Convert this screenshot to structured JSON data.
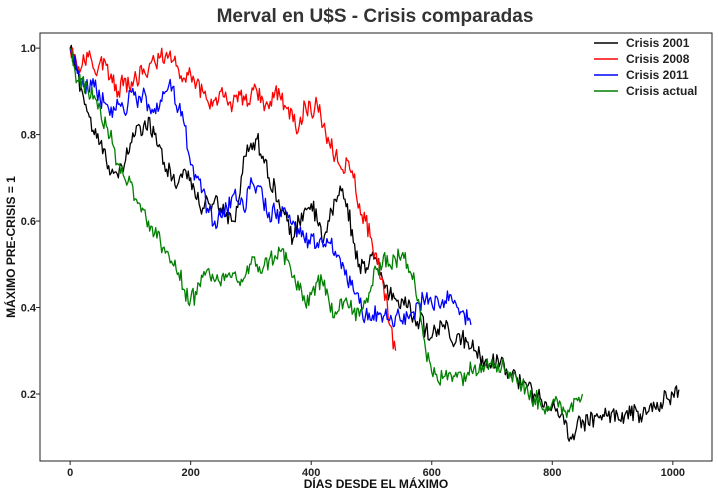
{
  "chart_data": {
    "type": "line",
    "title": "Merval en U$S - Crisis comparadas",
    "xlabel": "DÍAS DESDE EL MÁXIMO",
    "ylabel": "MÁXIMO PRE-CRISIS = 1",
    "xlim": [
      -50,
      1065
    ],
    "ylim": [
      0.045,
      1.035
    ],
    "xticks": [
      0,
      200,
      400,
      600,
      800,
      1000
    ],
    "yticks": [
      0.2,
      0.4,
      0.6,
      0.8,
      1.0
    ],
    "xtick_labels": [
      "0",
      "200",
      "400",
      "600",
      "800",
      "1000"
    ],
    "ytick_labels": [
      "0.2",
      "0.4",
      "0.6",
      "0.8",
      "1.0"
    ],
    "grid": false,
    "legend_position": "top-right",
    "series": [
      {
        "name": "Crisis 2001",
        "color": "#000000",
        "points": [
          [
            0,
            1.0
          ],
          [
            10,
            0.95
          ],
          [
            20,
            0.9
          ],
          [
            30,
            0.85
          ],
          [
            40,
            0.8
          ],
          [
            50,
            0.78
          ],
          [
            60,
            0.74
          ],
          [
            70,
            0.72
          ],
          [
            80,
            0.7
          ],
          [
            90,
            0.73
          ],
          [
            100,
            0.78
          ],
          [
            110,
            0.82
          ],
          [
            120,
            0.8
          ],
          [
            130,
            0.84
          ],
          [
            140,
            0.8
          ],
          [
            150,
            0.77
          ],
          [
            160,
            0.72
          ],
          [
            170,
            0.7
          ],
          [
            180,
            0.69
          ],
          [
            190,
            0.72
          ],
          [
            200,
            0.7
          ],
          [
            210,
            0.65
          ],
          [
            220,
            0.63
          ],
          [
            230,
            0.64
          ],
          [
            240,
            0.65
          ],
          [
            250,
            0.63
          ],
          [
            260,
            0.62
          ],
          [
            270,
            0.6
          ],
          [
            280,
            0.65
          ],
          [
            290,
            0.75
          ],
          [
            300,
            0.78
          ],
          [
            310,
            0.79
          ],
          [
            320,
            0.75
          ],
          [
            330,
            0.7
          ],
          [
            340,
            0.68
          ],
          [
            350,
            0.62
          ],
          [
            360,
            0.6
          ],
          [
            370,
            0.56
          ],
          [
            380,
            0.6
          ],
          [
            390,
            0.63
          ],
          [
            400,
            0.64
          ],
          [
            410,
            0.6
          ],
          [
            420,
            0.55
          ],
          [
            430,
            0.6
          ],
          [
            440,
            0.65
          ],
          [
            450,
            0.67
          ],
          [
            460,
            0.64
          ],
          [
            470,
            0.55
          ],
          [
            480,
            0.5
          ],
          [
            490,
            0.48
          ],
          [
            500,
            0.52
          ],
          [
            510,
            0.5
          ],
          [
            520,
            0.46
          ],
          [
            530,
            0.43
          ],
          [
            540,
            0.42
          ],
          [
            550,
            0.42
          ],
          [
            560,
            0.4
          ],
          [
            570,
            0.38
          ],
          [
            580,
            0.37
          ],
          [
            590,
            0.35
          ],
          [
            600,
            0.33
          ],
          [
            610,
            0.35
          ],
          [
            620,
            0.36
          ],
          [
            630,
            0.33
          ],
          [
            640,
            0.32
          ],
          [
            650,
            0.33
          ],
          [
            660,
            0.32
          ],
          [
            670,
            0.3
          ],
          [
            680,
            0.29
          ],
          [
            690,
            0.28
          ],
          [
            700,
            0.27
          ],
          [
            710,
            0.28
          ],
          [
            720,
            0.27
          ],
          [
            730,
            0.25
          ],
          [
            740,
            0.24
          ],
          [
            750,
            0.22
          ],
          [
            760,
            0.22
          ],
          [
            770,
            0.2
          ],
          [
            780,
            0.19
          ],
          [
            790,
            0.18
          ],
          [
            800,
            0.17
          ],
          [
            810,
            0.15
          ],
          [
            820,
            0.13
          ],
          [
            830,
            0.1
          ],
          [
            840,
            0.12
          ],
          [
            850,
            0.14
          ],
          [
            860,
            0.13
          ],
          [
            870,
            0.15
          ],
          [
            880,
            0.15
          ],
          [
            890,
            0.15
          ],
          [
            900,
            0.16
          ],
          [
            910,
            0.14
          ],
          [
            920,
            0.15
          ],
          [
            930,
            0.15
          ],
          [
            940,
            0.16
          ],
          [
            950,
            0.15
          ],
          [
            960,
            0.16
          ],
          [
            970,
            0.17
          ],
          [
            980,
            0.18
          ],
          [
            990,
            0.19
          ],
          [
            1000,
            0.2
          ],
          [
            1010,
            0.21
          ]
        ]
      },
      {
        "name": "Crisis 2008",
        "color": "#ff0000",
        "points": [
          [
            0,
            1.0
          ],
          [
            10,
            0.97
          ],
          [
            20,
            0.96
          ],
          [
            30,
            0.98
          ],
          [
            40,
            0.95
          ],
          [
            50,
            0.97
          ],
          [
            60,
            0.96
          ],
          [
            70,
            0.92
          ],
          [
            80,
            0.9
          ],
          [
            90,
            0.93
          ],
          [
            100,
            0.9
          ],
          [
            110,
            0.93
          ],
          [
            120,
            0.94
          ],
          [
            130,
            0.95
          ],
          [
            140,
            0.97
          ],
          [
            150,
            0.98
          ],
          [
            160,
            0.99
          ],
          [
            170,
            0.97
          ],
          [
            180,
            0.95
          ],
          [
            190,
            0.93
          ],
          [
            200,
            0.94
          ],
          [
            210,
            0.92
          ],
          [
            220,
            0.9
          ],
          [
            230,
            0.87
          ],
          [
            240,
            0.88
          ],
          [
            250,
            0.9
          ],
          [
            260,
            0.88
          ],
          [
            270,
            0.87
          ],
          [
            280,
            0.9
          ],
          [
            290,
            0.88
          ],
          [
            300,
            0.89
          ],
          [
            310,
            0.9
          ],
          [
            320,
            0.88
          ],
          [
            330,
            0.86
          ],
          [
            340,
            0.9
          ],
          [
            350,
            0.88
          ],
          [
            360,
            0.86
          ],
          [
            370,
            0.83
          ],
          [
            380,
            0.82
          ],
          [
            390,
            0.87
          ],
          [
            400,
            0.85
          ],
          [
            410,
            0.87
          ],
          [
            420,
            0.82
          ],
          [
            430,
            0.78
          ],
          [
            440,
            0.75
          ],
          [
            450,
            0.72
          ],
          [
            460,
            0.74
          ],
          [
            470,
            0.7
          ],
          [
            480,
            0.64
          ],
          [
            490,
            0.6
          ],
          [
            500,
            0.56
          ],
          [
            510,
            0.5
          ],
          [
            520,
            0.45
          ],
          [
            530,
            0.36
          ],
          [
            540,
            0.3
          ]
        ]
      },
      {
        "name": "Crisis 2011",
        "color": "#0000ff",
        "points": [
          [
            0,
            1.0
          ],
          [
            10,
            0.96
          ],
          [
            20,
            0.93
          ],
          [
            30,
            0.9
          ],
          [
            40,
            0.91
          ],
          [
            50,
            0.88
          ],
          [
            60,
            0.87
          ],
          [
            70,
            0.84
          ],
          [
            80,
            0.87
          ],
          [
            90,
            0.85
          ],
          [
            100,
            0.9
          ],
          [
            110,
            0.88
          ],
          [
            120,
            0.89
          ],
          [
            130,
            0.87
          ],
          [
            140,
            0.86
          ],
          [
            150,
            0.88
          ],
          [
            160,
            0.9
          ],
          [
            170,
            0.91
          ],
          [
            180,
            0.86
          ],
          [
            190,
            0.82
          ],
          [
            200,
            0.73
          ],
          [
            210,
            0.7
          ],
          [
            220,
            0.67
          ],
          [
            230,
            0.62
          ],
          [
            240,
            0.6
          ],
          [
            250,
            0.61
          ],
          [
            260,
            0.63
          ],
          [
            270,
            0.66
          ],
          [
            280,
            0.64
          ],
          [
            290,
            0.62
          ],
          [
            300,
            0.7
          ],
          [
            310,
            0.68
          ],
          [
            320,
            0.65
          ],
          [
            330,
            0.62
          ],
          [
            340,
            0.62
          ],
          [
            350,
            0.61
          ],
          [
            360,
            0.62
          ],
          [
            370,
            0.6
          ],
          [
            380,
            0.57
          ],
          [
            390,
            0.55
          ],
          [
            400,
            0.57
          ],
          [
            410,
            0.55
          ],
          [
            420,
            0.54
          ],
          [
            430,
            0.55
          ],
          [
            440,
            0.53
          ],
          [
            450,
            0.49
          ],
          [
            460,
            0.46
          ],
          [
            470,
            0.44
          ],
          [
            480,
            0.41
          ],
          [
            490,
            0.38
          ],
          [
            500,
            0.37
          ],
          [
            510,
            0.39
          ],
          [
            520,
            0.38
          ],
          [
            530,
            0.37
          ],
          [
            540,
            0.38
          ],
          [
            550,
            0.37
          ],
          [
            560,
            0.38
          ],
          [
            570,
            0.39
          ],
          [
            580,
            0.41
          ],
          [
            590,
            0.42
          ],
          [
            600,
            0.41
          ],
          [
            610,
            0.42
          ],
          [
            620,
            0.4
          ],
          [
            630,
            0.43
          ],
          [
            640,
            0.41
          ],
          [
            650,
            0.39
          ],
          [
            660,
            0.37
          ],
          [
            665,
            0.36
          ]
        ]
      },
      {
        "name": "Crisis actual",
        "color": "#008000",
        "points": [
          [
            0,
            1.0
          ],
          [
            5,
            0.96
          ],
          [
            10,
            0.92
          ],
          [
            20,
            0.93
          ],
          [
            30,
            0.9
          ],
          [
            40,
            0.89
          ],
          [
            50,
            0.86
          ],
          [
            60,
            0.82
          ],
          [
            70,
            0.78
          ],
          [
            80,
            0.73
          ],
          [
            90,
            0.7
          ],
          [
            100,
            0.69
          ],
          [
            110,
            0.65
          ],
          [
            120,
            0.63
          ],
          [
            130,
            0.6
          ],
          [
            140,
            0.57
          ],
          [
            150,
            0.55
          ],
          [
            160,
            0.53
          ],
          [
            170,
            0.5
          ],
          [
            180,
            0.48
          ],
          [
            190,
            0.44
          ],
          [
            200,
            0.42
          ],
          [
            210,
            0.43
          ],
          [
            220,
            0.47
          ],
          [
            230,
            0.49
          ],
          [
            240,
            0.46
          ],
          [
            250,
            0.45
          ],
          [
            260,
            0.47
          ],
          [
            270,
            0.48
          ],
          [
            280,
            0.46
          ],
          [
            290,
            0.47
          ],
          [
            300,
            0.5
          ],
          [
            310,
            0.5
          ],
          [
            320,
            0.49
          ],
          [
            330,
            0.51
          ],
          [
            340,
            0.52
          ],
          [
            350,
            0.53
          ],
          [
            360,
            0.51
          ],
          [
            370,
            0.47
          ],
          [
            380,
            0.44
          ],
          [
            390,
            0.41
          ],
          [
            400,
            0.43
          ],
          [
            410,
            0.46
          ],
          [
            420,
            0.45
          ],
          [
            430,
            0.41
          ],
          [
            440,
            0.39
          ],
          [
            450,
            0.42
          ],
          [
            460,
            0.41
          ],
          [
            470,
            0.39
          ],
          [
            480,
            0.38
          ],
          [
            490,
            0.41
          ],
          [
            500,
            0.45
          ],
          [
            510,
            0.49
          ],
          [
            520,
            0.52
          ],
          [
            530,
            0.5
          ],
          [
            540,
            0.51
          ],
          [
            550,
            0.52
          ],
          [
            560,
            0.5
          ],
          [
            570,
            0.48
          ],
          [
            580,
            0.4
          ],
          [
            590,
            0.3
          ],
          [
            600,
            0.25
          ],
          [
            610,
            0.23
          ],
          [
            620,
            0.24
          ],
          [
            630,
            0.25
          ],
          [
            640,
            0.25
          ],
          [
            650,
            0.24
          ],
          [
            660,
            0.25
          ],
          [
            670,
            0.26
          ],
          [
            680,
            0.27
          ],
          [
            690,
            0.27
          ],
          [
            700,
            0.28
          ],
          [
            710,
            0.27
          ],
          [
            720,
            0.26
          ],
          [
            730,
            0.25
          ],
          [
            740,
            0.24
          ],
          [
            750,
            0.22
          ],
          [
            760,
            0.2
          ],
          [
            770,
            0.19
          ],
          [
            780,
            0.18
          ],
          [
            790,
            0.17
          ],
          [
            800,
            0.18
          ],
          [
            810,
            0.17
          ],
          [
            820,
            0.16
          ],
          [
            830,
            0.17
          ],
          [
            840,
            0.19
          ],
          [
            850,
            0.2
          ]
        ]
      }
    ]
  }
}
